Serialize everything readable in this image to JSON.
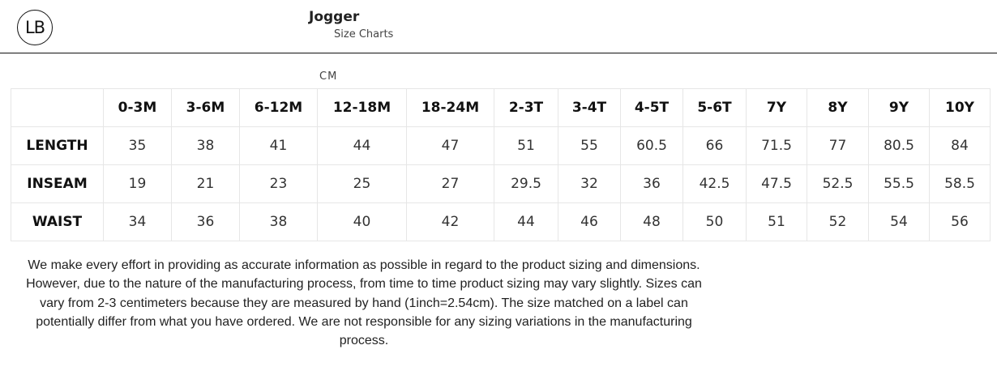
{
  "brand": {
    "logo_text": "LB"
  },
  "header": {
    "title": "Jogger",
    "subtitle": "Size Charts"
  },
  "unit_label": "CM",
  "table": {
    "columns": [
      "0-3M",
      "3-6M",
      "6-12M",
      "12-18M",
      "18-24M",
      "2-3T",
      "3-4T",
      "4-5T",
      "5-6T",
      "7Y",
      "8Y",
      "9Y",
      "10Y"
    ],
    "rows": [
      {
        "label": "LENGTH",
        "values": [
          "35",
          "38",
          "41",
          "44",
          "47",
          "51",
          "55",
          "60.5",
          "66",
          "71.5",
          "77",
          "80.5",
          "84"
        ]
      },
      {
        "label": "INSEAM",
        "values": [
          "19",
          "21",
          "23",
          "25",
          "27",
          "29.5",
          "32",
          "36",
          "42.5",
          "47.5",
          "52.5",
          "55.5",
          "58.5"
        ]
      },
      {
        "label": "WAIST",
        "values": [
          "34",
          "36",
          "38",
          "40",
          "42",
          "44",
          "46",
          "48",
          "50",
          "51",
          "52",
          "54",
          "56"
        ]
      }
    ]
  },
  "disclaimer": "We make every effort in providing as accurate information as possible in regard to the product sizing and dimensions. However, due to the nature of the manufacturing process, from time to time product sizing may vary slightly. Sizes can vary from 2-3 centimeters because they are measured by hand (1inch=2.54cm). The size matched on a label can potentially differ from what you have ordered. We are not responsible for any sizing variations in the manufacturing process."
}
